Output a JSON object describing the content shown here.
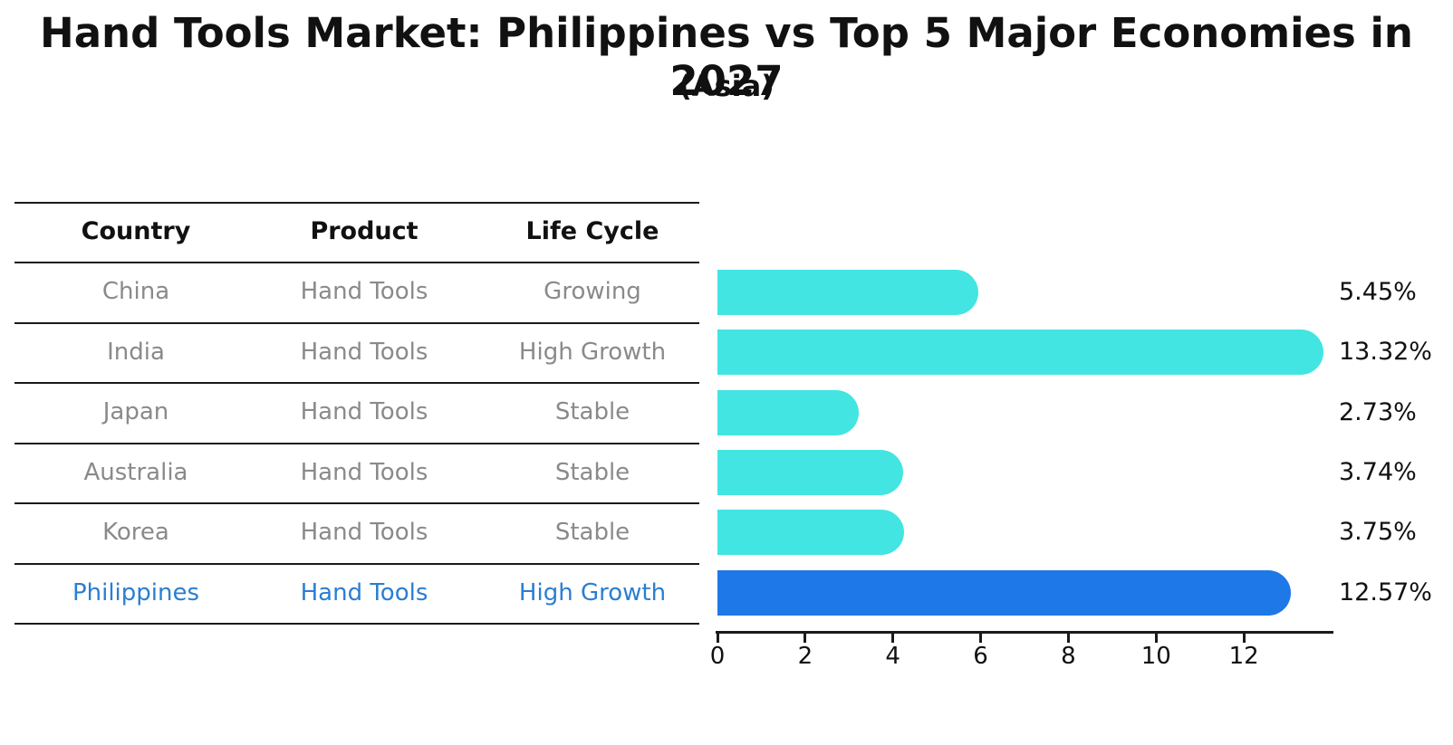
{
  "title": "Hand Tools Market: Philippines vs Top 5 Major Economies in 2027",
  "subtitle": "(Asia)",
  "colors": {
    "bar_default": "#42E5E1",
    "bar_highlight": "#1E78E8",
    "highlight_text": "#2B7ED3",
    "row_text": "#8A8A8A",
    "header_text": "#111111",
    "line": "#1A1A1A"
  },
  "table": {
    "headers": [
      "Country",
      "Product",
      "Life Cycle"
    ],
    "rows": [
      {
        "country": "China",
        "product": "Hand Tools",
        "life_cycle": "Growing",
        "highlight": false
      },
      {
        "country": "India",
        "product": "Hand Tools",
        "life_cycle": "High Growth",
        "highlight": false
      },
      {
        "country": "Japan",
        "product": "Hand Tools",
        "life_cycle": "Stable",
        "highlight": false
      },
      {
        "country": "Australia",
        "product": "Hand Tools",
        "life_cycle": "Stable",
        "highlight": false
      },
      {
        "country": "Korea",
        "product": "Hand Tools",
        "life_cycle": "Stable",
        "highlight": false
      },
      {
        "country": "Philippines",
        "product": "Hand Tools",
        "life_cycle": "High Growth",
        "highlight": true
      }
    ]
  },
  "chart_data": {
    "type": "bar",
    "orientation": "horizontal",
    "title": "Hand Tools Market: Philippines vs Top 5 Major Economies in 2027",
    "subtitle": "(Asia)",
    "categories": [
      "China",
      "India",
      "Japan",
      "Australia",
      "Korea",
      "Philippines"
    ],
    "values": [
      5.45,
      13.32,
      2.73,
      3.74,
      3.75,
      12.57
    ],
    "value_labels": [
      "5.45%",
      "13.32%",
      "2.73%",
      "3.74%",
      "3.75%",
      "12.57%"
    ],
    "unit": "%",
    "highlight_index": 5,
    "xlim": [
      0,
      14
    ],
    "xticks": [
      0,
      2,
      4,
      6,
      8,
      10,
      12
    ],
    "grid": false,
    "legend": false
  }
}
